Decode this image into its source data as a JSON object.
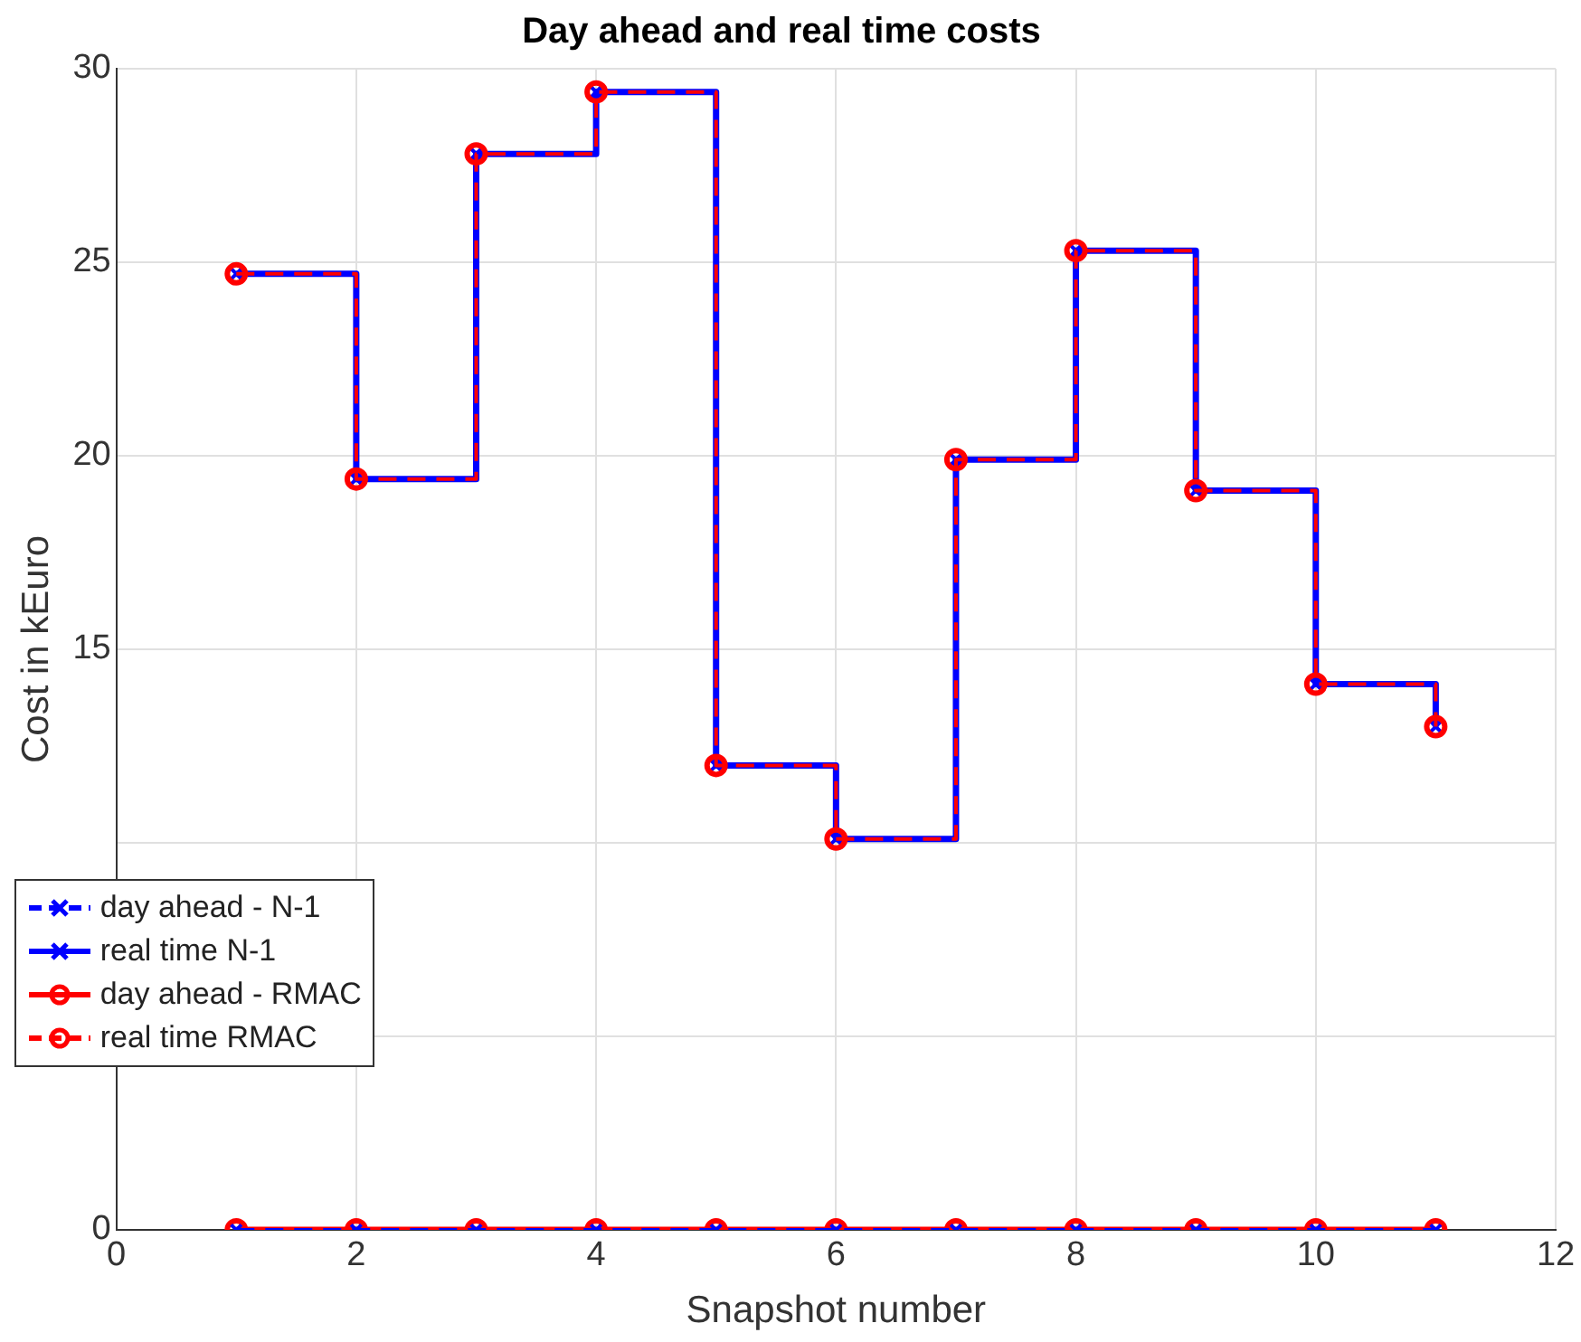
{
  "chart_data": {
    "type": "step",
    "title": "Day ahead and real time costs",
    "xlabel": "Snapshot number",
    "ylabel": "Cost in kEuro",
    "x": [
      1,
      2,
      3,
      4,
      5,
      6,
      7,
      8,
      9,
      10,
      11
    ],
    "series": [
      {
        "name": "day ahead - N-1",
        "color": "#0000ff",
        "line_style": "dashed",
        "marker": "cross",
        "values": [
          0,
          0,
          0,
          0,
          0,
          0,
          0,
          0,
          0,
          0,
          0
        ]
      },
      {
        "name": "real time N-1",
        "color": "#0000ff",
        "line_style": "solid",
        "marker": "cross",
        "values": [
          24.7,
          19.4,
          27.8,
          29.4,
          12.0,
          10.1,
          19.9,
          25.3,
          19.1,
          14.1,
          13.0
        ]
      },
      {
        "name": "day ahead - RMAC",
        "color": "#ff0000",
        "line_style": "solid",
        "marker": "circle",
        "values": [
          0,
          0,
          0,
          0,
          0,
          0,
          0,
          0,
          0,
          0,
          0
        ]
      },
      {
        "name": "real time RMAC",
        "color": "#ff0000",
        "line_style": "dashed",
        "marker": "circle",
        "values": [
          24.7,
          19.4,
          27.8,
          29.4,
          12.0,
          10.1,
          19.9,
          25.3,
          19.1,
          14.1,
          13.0
        ]
      }
    ],
    "xlim": [
      0,
      12
    ],
    "xticks": [
      0,
      2,
      4,
      6,
      8,
      10,
      12
    ],
    "ylim": [
      0,
      30
    ],
    "yticks": [
      0,
      {
        "value": 5,
        "label": null
      },
      {
        "value": 10,
        "label": null
      },
      15,
      20,
      25,
      30
    ],
    "grid": true,
    "legend": "bottom left"
  }
}
